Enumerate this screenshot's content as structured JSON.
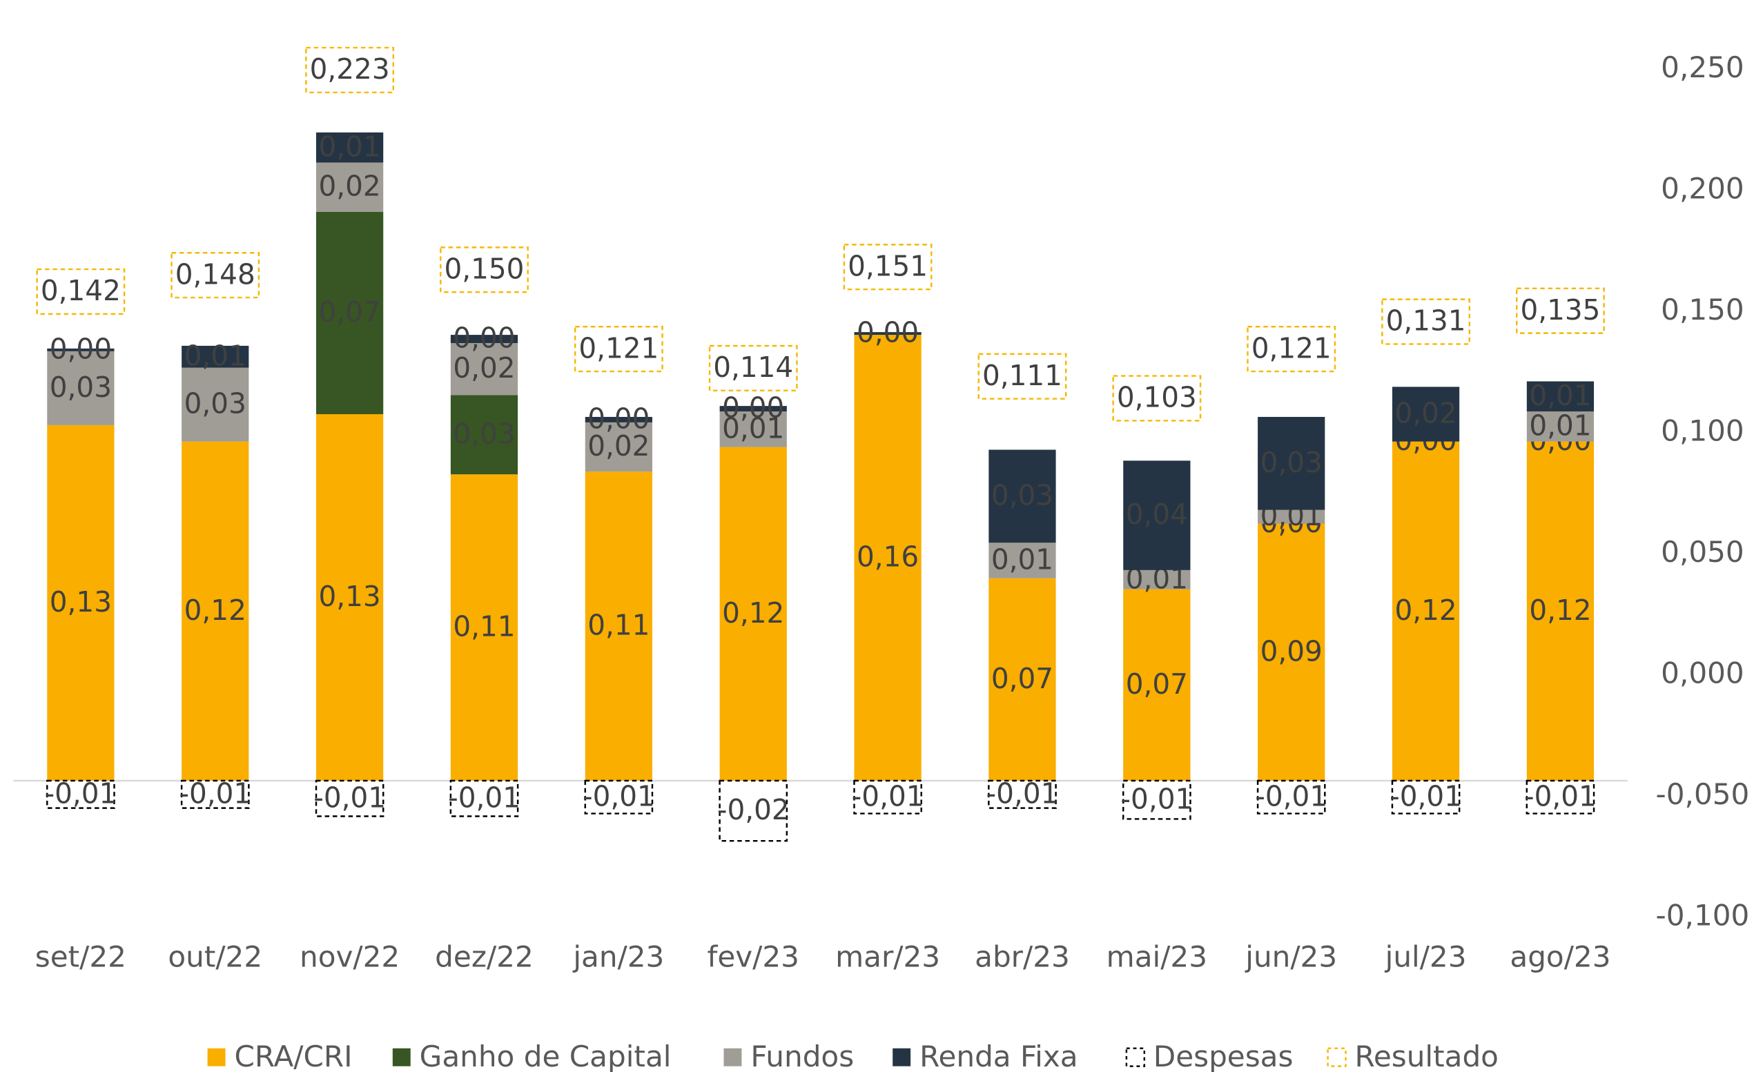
{
  "chart_data": {
    "type": "bar",
    "categories": [
      "set/22",
      "out/22",
      "nov/22",
      "dez/22",
      "jan/23",
      "fev/23",
      "mar/23",
      "abr/23",
      "mai/23",
      "jun/23",
      "jul/23",
      "ago/23"
    ],
    "ylim": [
      -0.05,
      0.26
    ],
    "y2lim": [
      -0.1,
      0.25
    ],
    "y2ticks": [
      {
        "value": 0.25,
        "label": "0,250"
      },
      {
        "value": 0.2,
        "label": "0,200"
      },
      {
        "value": 0.15,
        "label": "0,150"
      },
      {
        "value": 0.1,
        "label": "0,100"
      },
      {
        "value": 0.05,
        "label": "0,050"
      },
      {
        "value": 0,
        "label": "0,000"
      },
      {
        "value": -0.05,
        "label": "-0,050"
      },
      {
        "value": -0.1,
        "label": "-0,100"
      }
    ],
    "legend": "bottom",
    "series": [
      {
        "name": "CRA/CRI",
        "color": "#f9ae00",
        "style": "solid",
        "label_color": "#404040",
        "values": [
          0.13,
          0.124,
          0.134,
          0.112,
          0.113,
          0.122,
          0.163,
          0.074,
          0.07,
          0.094,
          0.124,
          0.124
        ],
        "value_labels": [
          "0,13",
          "0,12",
          "0,13",
          "0,11",
          "0,11",
          "0,12",
          "0,16",
          "0,07",
          "0,07",
          "0,09",
          "0,12",
          "0,12"
        ]
      },
      {
        "name": "Ganho de Capital",
        "color": "#375623",
        "style": "solid",
        "label_color": "#ffffff",
        "values": [
          null,
          null,
          0.074,
          0.029,
          null,
          null,
          null,
          null,
          null,
          0.0,
          null,
          0.0
        ],
        "value_labels": [
          null,
          null,
          "0,07",
          "0,03",
          null,
          null,
          null,
          null,
          null,
          "0,00",
          null,
          "0,00"
        ]
      },
      {
        "name": "Fundos",
        "color": "#a09c96",
        "style": "solid",
        "label_color": "#404040",
        "values": [
          0.027,
          0.027,
          0.018,
          0.019,
          0.018,
          0.013,
          null,
          0.013,
          0.007,
          0.005,
          0.0,
          0.011
        ],
        "value_labels": [
          "0,03",
          "0,03",
          "0,02",
          "0,02",
          "0,02",
          "0,01",
          null,
          "0,01",
          "0,01",
          "0,01",
          "0,00",
          "0,01"
        ]
      },
      {
        "name": "Renda Fixa",
        "color": "#243444",
        "style": "solid",
        "label_color": "#ffffff",
        "values": [
          0.001,
          0.008,
          0.011,
          0.003,
          0.002,
          0.002,
          0.001,
          0.034,
          0.04,
          0.034,
          0.02,
          0.011
        ],
        "value_labels": [
          "0,00",
          "0,01",
          "0,01",
          "0,00",
          "0,00",
          "0,00",
          "0,00",
          "0,03",
          "0,04",
          "0,03",
          "0,02",
          "0,01"
        ]
      },
      {
        "name": "Despesas",
        "color": "#000000",
        "style": "dashed",
        "label_color": "#404040",
        "values": [
          -0.01,
          -0.01,
          -0.013,
          -0.013,
          -0.012,
          -0.022,
          -0.012,
          -0.01,
          -0.014,
          -0.012,
          -0.012,
          -0.012
        ],
        "value_labels": [
          "-0,01",
          "-0,01",
          "-0,01",
          "-0,01",
          "-0,01",
          "-0,02",
          "-0,01",
          "-0,01",
          "-0,01",
          "-0,01",
          "-0,01",
          "-0,01"
        ]
      },
      {
        "name": "Resultado",
        "color": "#f5b800",
        "style": "box",
        "label_color": "#404040",
        "values": [
          0.142,
          0.148,
          0.223,
          0.15,
          0.121,
          0.114,
          0.151,
          0.111,
          0.103,
          0.121,
          0.131,
          0.135
        ],
        "value_labels": [
          "0,142",
          "0,148",
          "0,223",
          "0,150",
          "0,121",
          "0,114",
          "0,151",
          "0,111",
          "0,103",
          "0,121",
          "0,131",
          "0,135"
        ]
      }
    ]
  }
}
